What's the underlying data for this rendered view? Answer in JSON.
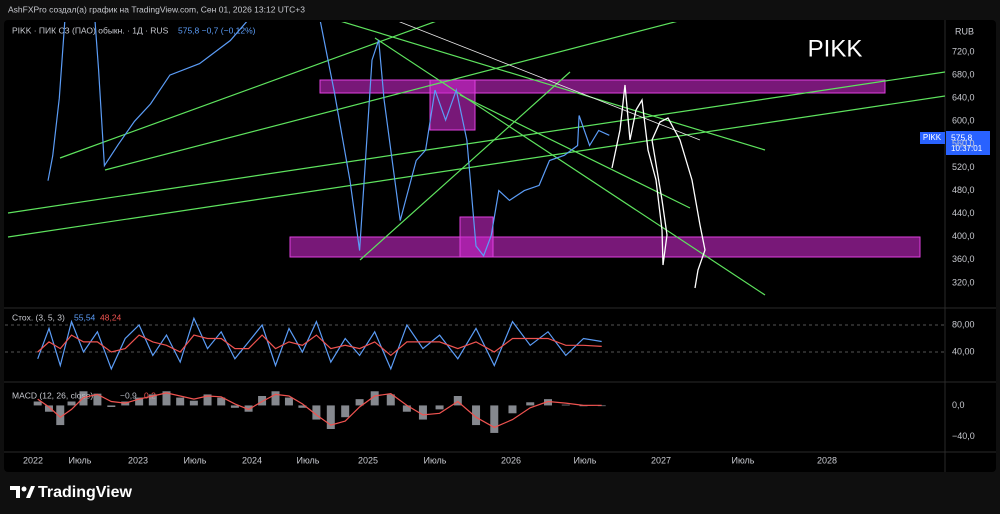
{
  "header": {
    "text": "AshFXPro создал(а) график на TradingView.com, Сен 01, 2026 13:12 UTC+3"
  },
  "footer": {
    "brand": "TradingView"
  },
  "chart_data": [
    {
      "type": "line",
      "title": "PIKK",
      "legend_text": "PIKK · ПИК СЗ (ПАО) обыкн. · 1Д · RUS",
      "legend_quote": "575,8 −0,7 (−0,12%)",
      "currency": "RUB",
      "last_tag": {
        "symbol": "PIKK",
        "price": "575,8",
        "countdown": "10:37:01"
      },
      "color": "#5b9cf6",
      "x": [
        2022.16,
        2022.21,
        2022.28,
        2022.35,
        2022.62,
        2022.66,
        2022.71,
        2022.83,
        2022.97,
        2023.11,
        2023.28,
        2023.54,
        2023.81,
        2024.03,
        2024.09,
        2024.57,
        2024.6,
        2024.72,
        2024.85,
        2024.93,
        2025.03,
        2025.08,
        2025.12,
        2025.19,
        2025.24,
        2025.36,
        2025.43,
        2025.5,
        2025.57,
        2025.64,
        2025.71,
        2025.77,
        2025.82,
        2025.87,
        2025.92,
        2025.99,
        2026.09,
        2026.19,
        2026.26,
        2026.36,
        2026.45,
        2026.46,
        2026.53,
        2026.59,
        2026.66
      ],
      "values": [
        497,
        540,
        640,
        800,
        800,
        689,
        523,
        560,
        600,
        630,
        680,
        700,
        740,
        790,
        820,
        820,
        776,
        650,
        497,
        376,
        706,
        741,
        637,
        515,
        428,
        532,
        550,
        654,
        602,
        654,
        567,
        384,
        367,
        402,
        480,
        463,
        480,
        489,
        532,
        541,
        558,
        610,
        558,
        584,
        575.8
      ],
      "xlim": [
        2021.85,
        2028.7
      ],
      "xticks": [
        {
          "value": 2022,
          "label": "2022"
        },
        {
          "value": 2022.5,
          "label": "Июль"
        },
        {
          "value": 2023,
          "label": "2023"
        },
        {
          "value": 2023.5,
          "label": "Июль"
        },
        {
          "value": 2024,
          "label": "2024"
        },
        {
          "value": 2024.5,
          "label": "Июль"
        },
        {
          "value": 2025,
          "label": "2025"
        },
        {
          "value": 2025.5,
          "label": "Июль"
        },
        {
          "value": 2026,
          "label": "2026"
        },
        {
          "value": 2026.5,
          "label": "Июль"
        },
        {
          "value": 2027,
          "label": "2027"
        },
        {
          "value": 2027.5,
          "label": "Июль"
        },
        {
          "value": 2028,
          "label": "2028"
        }
      ],
      "ylim": [
        280,
        772
      ],
      "yticks": [
        {
          "value": 320,
          "label": "320,0"
        },
        {
          "value": 360,
          "label": "360,0"
        },
        {
          "value": 400,
          "label": "400,0"
        },
        {
          "value": 440,
          "label": "440,0"
        },
        {
          "value": 480,
          "label": "480,0"
        },
        {
          "value": 520,
          "label": "520,0"
        },
        {
          "value": 560,
          "label": "560,0"
        },
        {
          "value": 600,
          "label": "600,0"
        },
        {
          "value": 640,
          "label": "640,0"
        },
        {
          "value": 680,
          "label": "680,0"
        },
        {
          "value": 720,
          "label": "720,0"
        }
      ],
      "grid": false
    },
    {
      "type": "line",
      "legend_text": "Стох. (3, 5, 3)",
      "x": [
        2022.05,
        2022.17,
        2022.29,
        2022.41,
        2022.53,
        2022.65,
        2022.77,
        2022.89,
        2023.01,
        2023.13,
        2023.25,
        2023.37,
        2023.49,
        2023.61,
        2023.73,
        2023.85,
        2023.97,
        2024.09,
        2024.21,
        2024.33,
        2024.45,
        2024.57,
        2024.69,
        2024.81,
        2024.93,
        2025.05,
        2025.17,
        2025.29,
        2025.41,
        2025.53,
        2025.65,
        2025.77,
        2025.89,
        2026.01,
        2026.13,
        2026.25,
        2026.37,
        2026.49,
        2026.61
      ],
      "series": [
        {
          "color": "#5b9cf6",
          "last_label": "55,54",
          "values": [
            30,
            75,
            20,
            85,
            40,
            70,
            15,
            60,
            80,
            35,
            65,
            25,
            90,
            45,
            70,
            30,
            55,
            80,
            20,
            75,
            40,
            85,
            25,
            60,
            35,
            70,
            15,
            80,
            45,
            65,
            30,
            75,
            20,
            85,
            50,
            70,
            35,
            60,
            55.54
          ]
        },
        {
          "color": "#ef5350",
          "last_label": "48,24",
          "values": [
            40,
            55,
            45,
            65,
            55,
            55,
            40,
            45,
            65,
            55,
            50,
            40,
            65,
            60,
            60,
            45,
            45,
            65,
            45,
            55,
            50,
            65,
            45,
            50,
            45,
            55,
            35,
            55,
            55,
            55,
            45,
            55,
            40,
            60,
            60,
            60,
            50,
            50,
            48.24
          ]
        }
      ],
      "ylim": [
        0,
        100
      ],
      "yticks": [
        {
          "value": 40,
          "label": "40,00"
        },
        {
          "value": 80,
          "label": "80,00"
        }
      ],
      "grid": true
    },
    {
      "type": "bar",
      "legend_text": "MACD (12, 26, close)",
      "x": [
        2022.05,
        2022.17,
        2022.29,
        2022.41,
        2022.53,
        2022.65,
        2022.77,
        2022.89,
        2023.01,
        2023.13,
        2023.25,
        2023.37,
        2023.49,
        2023.61,
        2023.73,
        2023.85,
        2023.97,
        2024.09,
        2024.21,
        2024.33,
        2024.45,
        2024.57,
        2024.69,
        2024.81,
        2024.93,
        2025.05,
        2025.17,
        2025.29,
        2025.41,
        2025.53,
        2025.65,
        2025.77,
        2025.89,
        2026.01,
        2026.13,
        2026.25,
        2026.37,
        2026.49,
        2026.61
      ],
      "series": [
        {
          "type": "bar",
          "color": "#b2b5be",
          "last_label": "−0,9",
          "values": [
            5,
            -8,
            -25,
            5,
            18,
            15,
            -2,
            5,
            10,
            14,
            18,
            10,
            6,
            14,
            10,
            -3,
            -8,
            12,
            18,
            10,
            -3,
            -18,
            -30,
            -15,
            8,
            18,
            14,
            -8,
            -18,
            -5,
            12,
            -25,
            -35,
            -10,
            4,
            8,
            1,
            -1,
            -0.9
          ]
        },
        {
          "type": "line",
          "color": "#ef5350",
          "last_label": "0,2",
          "values": [
            8,
            -2,
            -15,
            -5,
            10,
            14,
            5,
            3,
            8,
            12,
            16,
            12,
            8,
            12,
            11,
            2,
            -5,
            5,
            14,
            12,
            2,
            -12,
            -25,
            -20,
            -2,
            12,
            15,
            0,
            -12,
            -10,
            5,
            -15,
            -28,
            -18,
            -3,
            5,
            3,
            0,
            0.2
          ]
        }
      ],
      "ylim": [
        -58,
        26
      ],
      "yticks": [
        {
          "value": -40,
          "label": "−40,0"
        },
        {
          "value": 0,
          "label": "0,0"
        }
      ],
      "grid": false
    }
  ]
}
